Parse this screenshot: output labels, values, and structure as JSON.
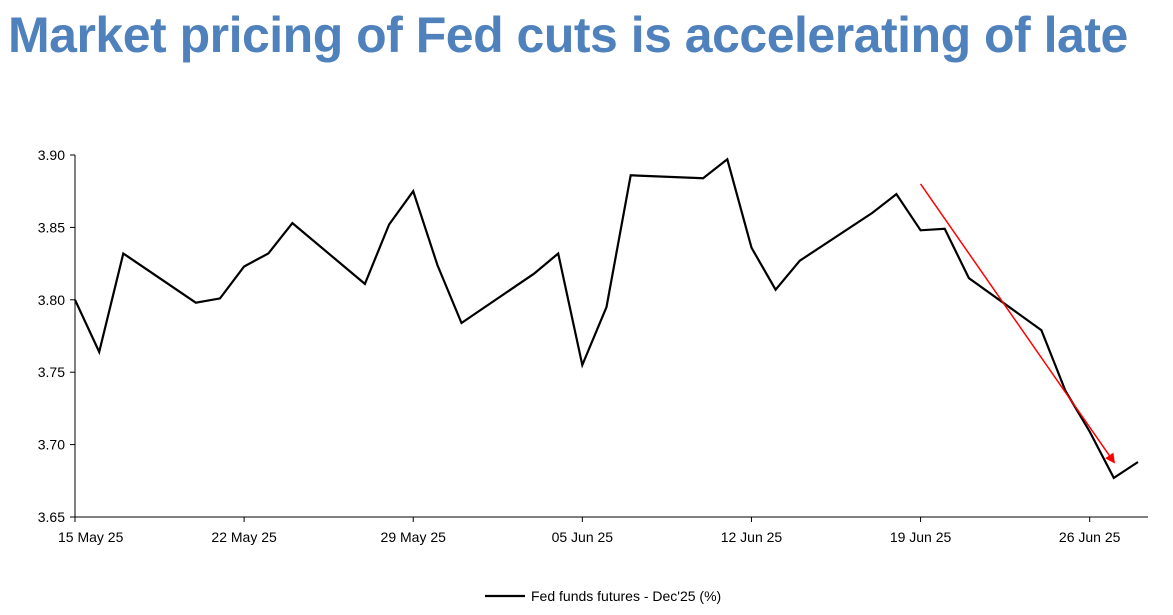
{
  "title": "Market pricing of Fed cuts is accelerating of late",
  "chart_data": {
    "type": "line",
    "title": "Market pricing of Fed cuts is accelerating of late",
    "xlabel": "",
    "ylabel": "",
    "ylim": [
      3.65,
      3.9
    ],
    "y_ticks": [
      "3.65",
      "3.70",
      "3.75",
      "3.80",
      "3.85",
      "3.90"
    ],
    "x_tick_labels": [
      "15 May 25",
      "22 May 25",
      "29 May 25",
      "05 Jun 25",
      "12 Jun 25",
      "19 Jun 25",
      "26 Jun 25"
    ],
    "legend_position": "bottom",
    "grid": false,
    "series": [
      {
        "name": "Fed funds futures - Dec'25 (%)",
        "color": "#000000",
        "points": [
          {
            "x": "2025-05-15",
            "y": 3.8
          },
          {
            "x": "2025-05-16",
            "y": 3.764
          },
          {
            "x": "2025-05-17",
            "y": 3.832
          },
          {
            "x": "2025-05-20",
            "y": 3.798
          },
          {
            "x": "2025-05-21",
            "y": 3.801
          },
          {
            "x": "2025-05-22",
            "y": 3.823
          },
          {
            "x": "2025-05-23",
            "y": 3.832
          },
          {
            "x": "2025-05-24",
            "y": 3.853
          },
          {
            "x": "2025-05-27",
            "y": 3.811
          },
          {
            "x": "2025-05-28",
            "y": 3.852
          },
          {
            "x": "2025-05-29",
            "y": 3.875
          },
          {
            "x": "2025-05-30",
            "y": 3.824
          },
          {
            "x": "2025-05-31",
            "y": 3.784
          },
          {
            "x": "2025-06-03",
            "y": 3.818
          },
          {
            "x": "2025-06-04",
            "y": 3.832
          },
          {
            "x": "2025-06-05",
            "y": 3.755
          },
          {
            "x": "2025-06-06",
            "y": 3.795
          },
          {
            "x": "2025-06-07",
            "y": 3.886
          },
          {
            "x": "2025-06-10",
            "y": 3.884
          },
          {
            "x": "2025-06-11",
            "y": 3.897
          },
          {
            "x": "2025-06-12",
            "y": 3.836
          },
          {
            "x": "2025-06-13",
            "y": 3.807
          },
          {
            "x": "2025-06-14",
            "y": 3.827
          },
          {
            "x": "2025-06-17",
            "y": 3.86
          },
          {
            "x": "2025-06-18",
            "y": 3.873
          },
          {
            "x": "2025-06-19",
            "y": 3.848
          },
          {
            "x": "2025-06-20",
            "y": 3.849
          },
          {
            "x": "2025-06-21",
            "y": 3.815
          },
          {
            "x": "2025-06-24",
            "y": 3.779
          },
          {
            "x": "2025-06-25",
            "y": 3.737
          },
          {
            "x": "2025-06-26",
            "y": 3.709
          },
          {
            "x": "2025-06-27",
            "y": 3.677
          },
          {
            "x": "2025-06-28",
            "y": 3.688
          }
        ]
      }
    ],
    "annotations": [
      {
        "type": "arrow",
        "color": "#ff0000",
        "from": {
          "x": "2025-06-19",
          "y": 3.88
        },
        "to": {
          "x": "2025-06-27",
          "y": 3.688
        }
      }
    ]
  }
}
